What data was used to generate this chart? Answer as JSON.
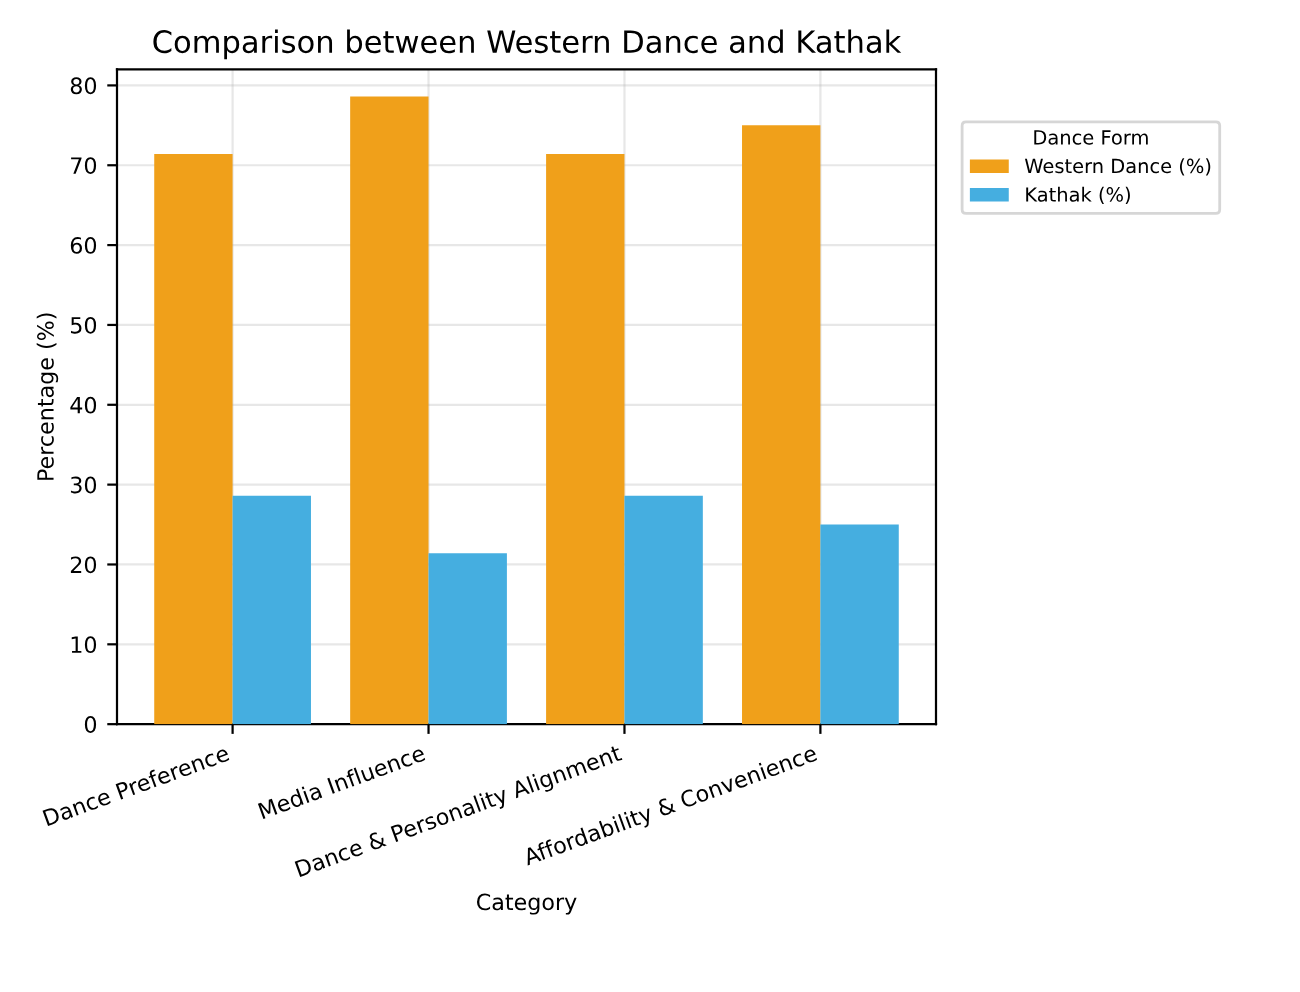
{
  "chart_data": {
    "type": "bar",
    "title": "Comparison between Western Dance and Kathak",
    "xlabel": "Category",
    "ylabel": "Percentage (%)",
    "legend_title": "Dance Form",
    "categories": [
      "Dance Preference",
      "Media Influence",
      "Dance & Personality Alignment",
      "Affordability & Convenience"
    ],
    "series": [
      {
        "name": "Western Dance (%)",
        "color": "#f0a01a",
        "values": [
          71.4,
          78.6,
          71.4,
          75
        ]
      },
      {
        "name": "Kathak (%)",
        "color": "#45aee0",
        "values": [
          28.6,
          21.4,
          28.6,
          25
        ]
      }
    ],
    "ylim": [
      0,
      82
    ],
    "yticks": [
      0,
      10,
      20,
      30,
      40,
      50,
      60,
      70,
      80
    ],
    "grid": true,
    "legend": "right"
  }
}
